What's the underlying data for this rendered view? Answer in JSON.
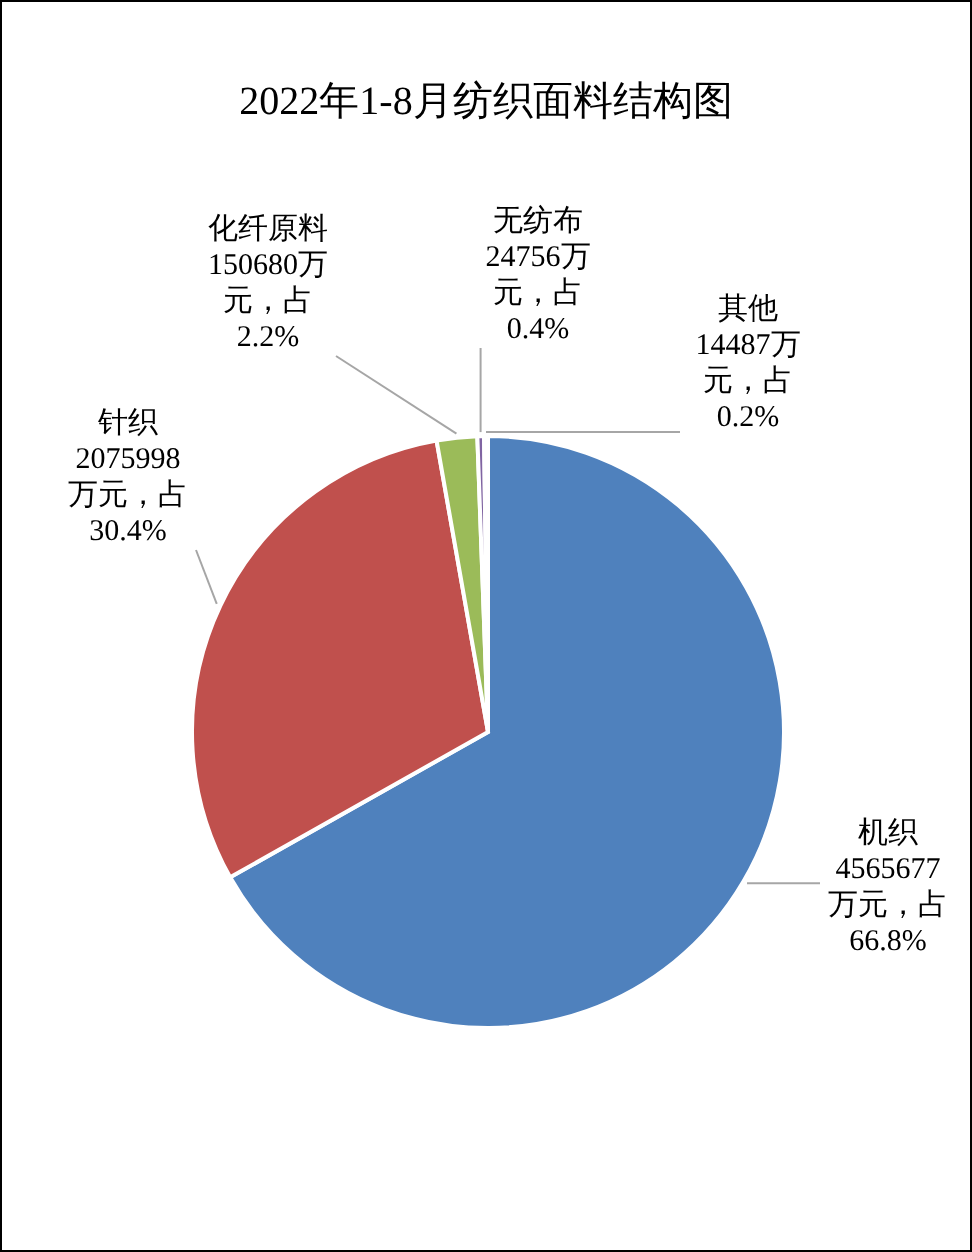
{
  "chart_data": {
    "type": "pie",
    "title": "2022年1-8月纺织面料结构图",
    "categories": [
      "机织",
      "针织",
      "化纤原料",
      "无纺布",
      "其他"
    ],
    "values": [
      4565677,
      2075998,
      150680,
      24756,
      14487
    ],
    "colors": [
      "#4f81bd",
      "#c0504d",
      "#9bbb59",
      "#8064a2",
      "#4bacc6"
    ],
    "value_labels": [
      "4565677万元，占66.8%",
      "2075998万元，占30.4%",
      "150680万元，占2.2%",
      "24756万元，占0.4%",
      "14487万元，占0.2%"
    ],
    "legend": false
  }
}
